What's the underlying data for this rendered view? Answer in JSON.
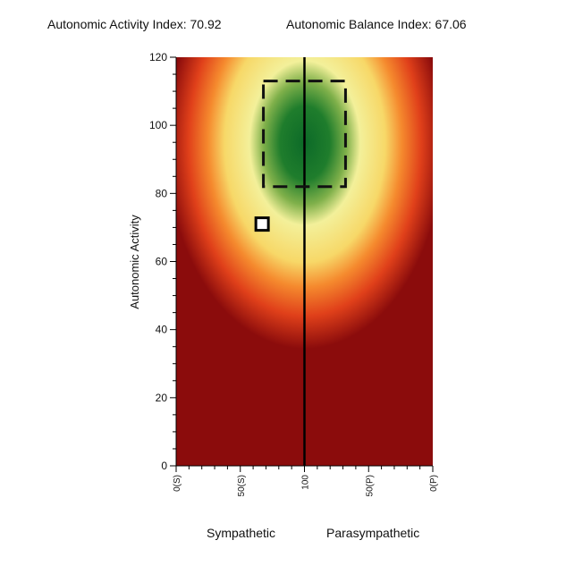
{
  "header": {
    "activity_index": "Autonomic Activity Index: 70.92",
    "balance_index": "Autonomic Balance Index: 67.06"
  },
  "chart_data": {
    "type": "heatmap",
    "title": "",
    "ylabel": "Autonomic Activity",
    "ylim": [
      0,
      120
    ],
    "yticks": [
      0,
      20,
      40,
      60,
      80,
      100,
      120
    ],
    "xlim": [
      0,
      200
    ],
    "xticks": [
      {
        "value": 0,
        "label": "0(S)"
      },
      {
        "value": 50,
        "label": "50(S)"
      },
      {
        "value": 100,
        "label": "100"
      },
      {
        "value": 150,
        "label": "50(P)"
      },
      {
        "value": 200,
        "label": "0(P)"
      }
    ],
    "center_line_x": 100,
    "target_zone": {
      "x": [
        68,
        132
      ],
      "y": [
        82,
        113
      ]
    },
    "measurement": {
      "x": 67,
      "y": 71
    },
    "bottom_labels": [
      "Sympathetic",
      "Parasympathetic"
    ],
    "colors": {
      "dark_red": "#8b0c0c",
      "red_orange": "#e0401a",
      "orange": "#f58a2e",
      "yellow": "#f7f09a",
      "green": "#0c6a28",
      "marker_fill": "#ffffff"
    },
    "grid": false,
    "legend": "none"
  }
}
